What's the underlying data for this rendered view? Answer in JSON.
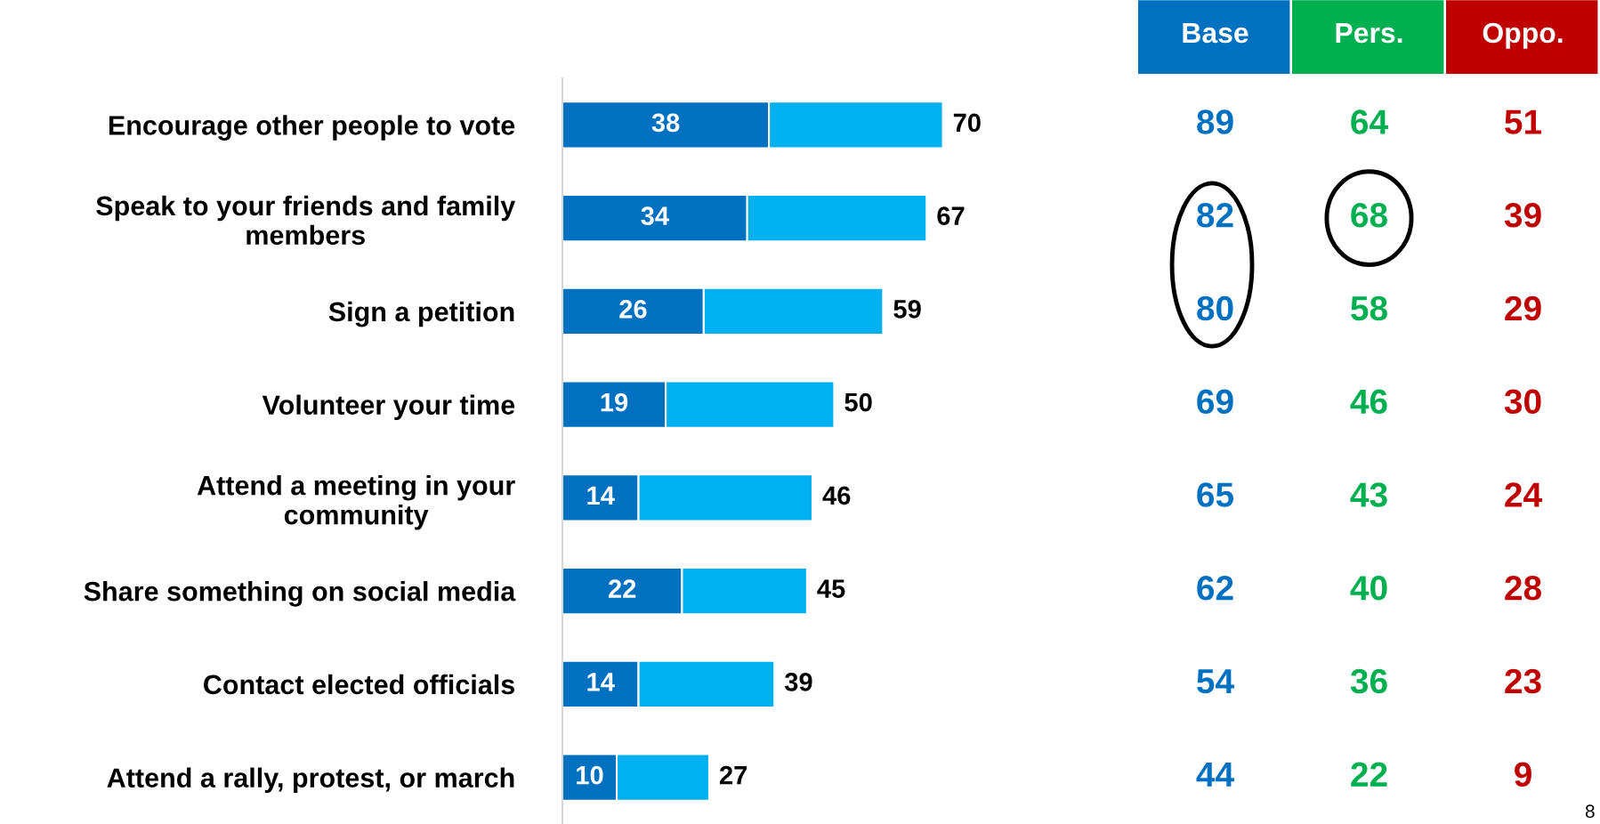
{
  "chart_data": [
    {
      "type": "bar",
      "orientation": "horizontal",
      "stacked": true,
      "categories": [
        "Encourage other people to vote",
        "Speak to your friends and family\nmembers",
        "Sign a petition",
        "Volunteer your time",
        "Attend a meeting in your\ncommunity",
        "Share something on social media",
        "Contact elected officials",
        "Attend a rally, protest, or march"
      ],
      "series": [
        {
          "color": "#0070c0",
          "values": [
            38,
            34,
            26,
            19,
            14,
            22,
            14,
            10
          ],
          "value_labels": [
            "38",
            "34",
            "26",
            "19",
            "14",
            "22",
            "14",
            "10"
          ]
        },
        {
          "color": "#00b0f0",
          "values": [
            32,
            33,
            33,
            31,
            32,
            23,
            25,
            17
          ]
        }
      ],
      "totals": [
        "70",
        "67",
        "59",
        "50",
        "46",
        "45",
        "39",
        "27"
      ]
    },
    {
      "type": "heatmap",
      "categories": [
        "Base",
        "Pers.",
        "Oppo."
      ],
      "y_categories": [
        null,
        null,
        null,
        null,
        null,
        null,
        null,
        null
      ],
      "colors": [
        "#0070c0",
        "#00b050",
        "#c00000"
      ],
      "cells": [
        [
          89,
          64,
          51
        ],
        [
          82,
          68,
          39
        ],
        [
          80,
          58,
          29
        ],
        [
          69,
          46,
          30
        ],
        [
          65,
          43,
          24
        ],
        [
          62,
          40,
          28
        ],
        [
          54,
          36,
          23
        ],
        [
          44,
          22,
          9
        ]
      ],
      "data_labels": true,
      "annotations": [
        "8"
      ]
    }
  ]
}
